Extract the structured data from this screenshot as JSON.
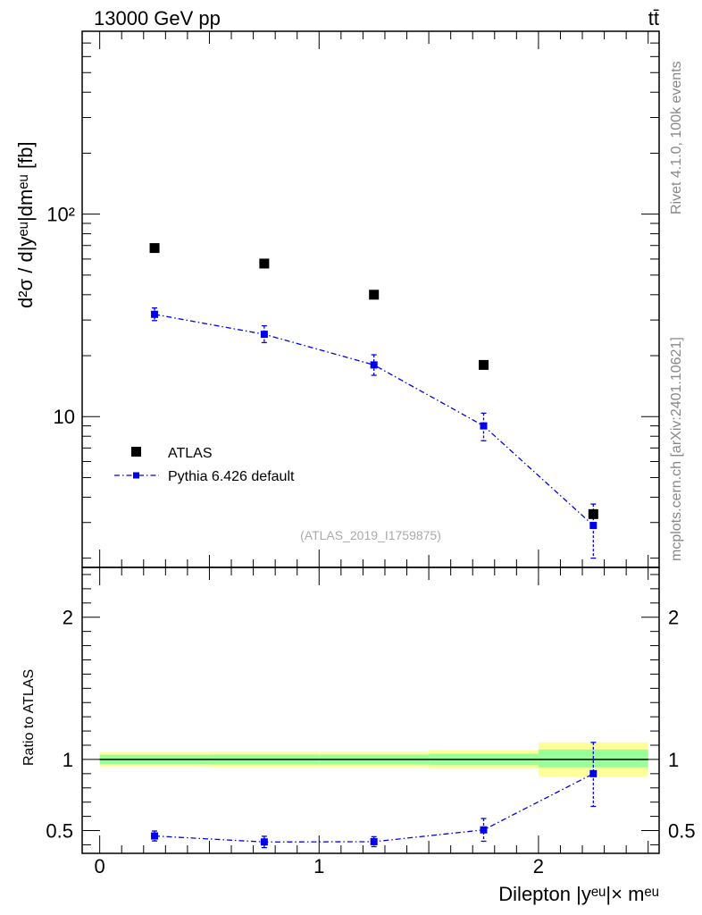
{
  "header": {
    "left": "13000 GeV pp",
    "right": "tt̄"
  },
  "side_labels": {
    "rivet": "Rivet 4.1.0,  100k events",
    "mcplots": "mcplots.cern.ch [arXiv:2401.10621]"
  },
  "watermark": "(ATLAS_2019_I1759875)",
  "colors": {
    "data": "#000000",
    "mc": "#0000ee",
    "band_outer": "#ffff99",
    "band_inner": "#99ff99"
  },
  "chart_data": [
    {
      "type": "scatter",
      "panel": "main",
      "yscale": "log",
      "ylabel": "d²σ / d|yᵉᵘ|dmᵉᵘ [fb]",
      "ylim": [
        1.8,
        800
      ],
      "xlim": [
        -0.08,
        2.55
      ],
      "yticks": [
        {
          "value": 10,
          "label": "10"
        },
        {
          "value": 100,
          "label": "10²"
        }
      ],
      "series": [
        {
          "name": "ATLAS",
          "style": "marker",
          "x": [
            0.25,
            0.75,
            1.25,
            1.75,
            2.25
          ],
          "y": [
            68,
            57,
            40,
            18,
            3.3
          ],
          "yerr": [
            0,
            0,
            0,
            0,
            0
          ]
        },
        {
          "name": "Pythia 6.426 default",
          "style": "line-marker",
          "x": [
            0.25,
            0.75,
            1.25,
            1.75,
            2.25
          ],
          "y": [
            32,
            25.5,
            18,
            9,
            2.9
          ],
          "yerr_lo": [
            2.2,
            2.3,
            2.0,
            1.4,
            0.9
          ],
          "yerr_hi": [
            2.4,
            2.6,
            2.2,
            1.4,
            0.8
          ]
        }
      ],
      "legend_position": "middle-left"
    },
    {
      "type": "scatter",
      "panel": "ratio",
      "ylabel": "Ratio to ATLAS",
      "xlabel": "Dilepton |yᵉᵘ|× mᵉᵘ",
      "ylim": [
        0.34,
        2.35
      ],
      "xlim": [
        -0.08,
        2.55
      ],
      "xticks": [
        0,
        1,
        2
      ],
      "yticks": [
        {
          "value": 0.5,
          "label": "0.5"
        },
        {
          "value": 1,
          "label": "1"
        },
        {
          "value": 2,
          "label": "2"
        }
      ],
      "bands": [
        {
          "x0": 0.0,
          "x1": 0.5,
          "outer": [
            0.948,
            1.052
          ],
          "inner": [
            0.967,
            1.033
          ]
        },
        {
          "x0": 0.5,
          "x1": 1.0,
          "outer": [
            0.945,
            1.055
          ],
          "inner": [
            0.966,
            1.034
          ]
        },
        {
          "x0": 1.0,
          "x1": 1.5,
          "outer": [
            0.945,
            1.055
          ],
          "inner": [
            0.966,
            1.034
          ]
        },
        {
          "x0": 1.5,
          "x1": 2.0,
          "outer": [
            0.935,
            1.065
          ],
          "inner": [
            0.96,
            1.04
          ]
        },
        {
          "x0": 2.0,
          "x1": 2.5,
          "outer": [
            0.88,
            1.12
          ],
          "inner": [
            0.945,
            1.07
          ]
        }
      ],
      "series": [
        {
          "name": "Pythia 6.426 default",
          "x": [
            0.25,
            0.75,
            1.25,
            1.75,
            2.25
          ],
          "y": [
            0.462,
            0.42,
            0.422,
            0.505,
            0.9
          ],
          "yerr_lo": [
            0.035,
            0.04,
            0.035,
            0.08,
            0.23
          ],
          "yerr_hi": [
            0.035,
            0.04,
            0.035,
            0.08,
            0.22
          ]
        }
      ]
    }
  ]
}
